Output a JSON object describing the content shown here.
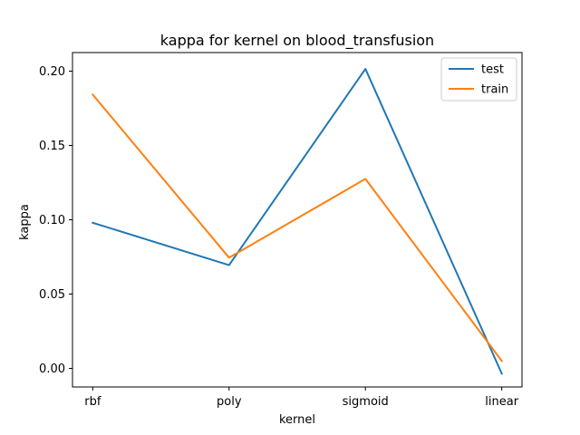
{
  "chart_data": {
    "type": "line",
    "title": "kappa for kernel on  blood_transfusion",
    "xlabel": "kernel",
    "ylabel": "kappa",
    "categories": [
      "rbf",
      "poly",
      "sigmoid",
      "linear"
    ],
    "ylim": [
      -0.0125,
      0.2125
    ],
    "yticks": [
      0.0,
      0.05,
      0.1,
      0.15,
      0.2
    ],
    "ytick_labels": [
      "0.00",
      "0.05",
      "0.10",
      "0.15",
      "0.20"
    ],
    "grid": false,
    "legend_position": "top-right",
    "series": [
      {
        "name": "test",
        "color": "#1f77b4",
        "values": [
          0.098,
          0.0695,
          0.2015,
          -0.0035
        ]
      },
      {
        "name": "train",
        "color": "#ff7f0e",
        "values": [
          0.1842,
          0.0745,
          0.1275,
          0.005
        ]
      }
    ]
  }
}
